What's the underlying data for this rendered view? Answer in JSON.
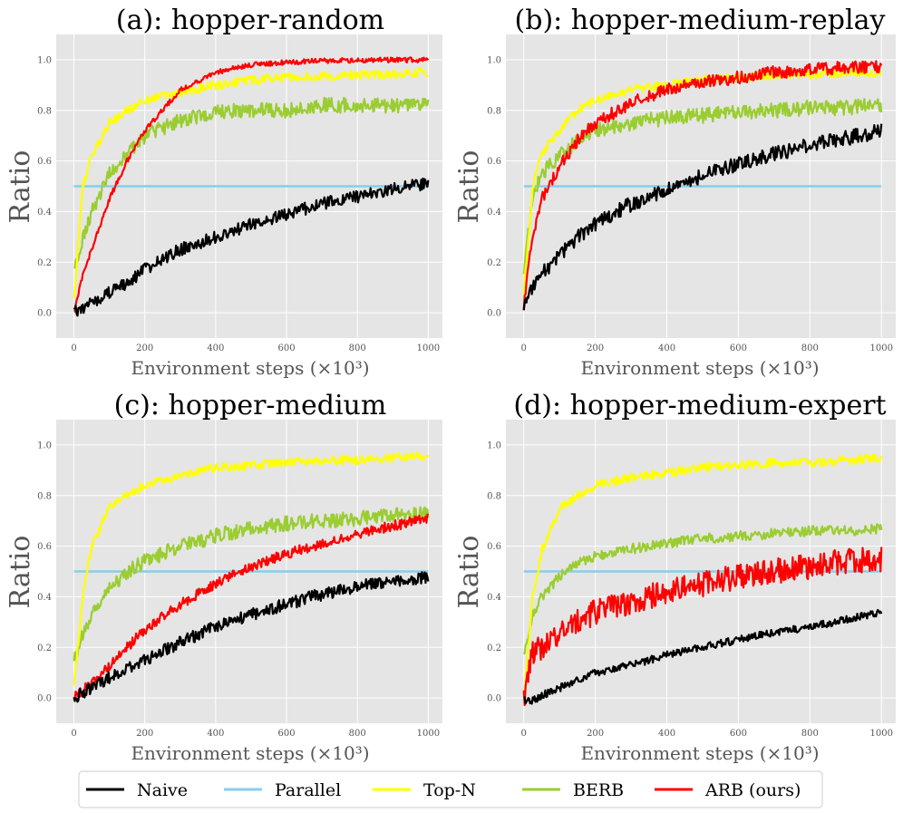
{
  "chart_data": {
    "type": "line",
    "legend": {
      "placement": "bottom-center",
      "entries": [
        {
          "name": "Naive",
          "color": "#000000"
        },
        {
          "name": "Parallel",
          "color": "#87ceeb"
        },
        {
          "name": "Top-N",
          "color": "#ffff00"
        },
        {
          "name": "BERB",
          "color": "#9acd32"
        },
        {
          "name": "ARB (ours)",
          "color": "#ff0000"
        }
      ]
    },
    "panels": [
      {
        "id": "a",
        "title": "(a): hopper-random",
        "xlabel": "Environment steps (×10³)",
        "ylabel": "Ratio",
        "xlim": [
          -50,
          1040
        ],
        "ylim": [
          -0.1,
          1.1
        ],
        "xticks": [
          "0",
          "200",
          "400",
          "600",
          "800",
          "1000"
        ],
        "yticks": [
          "0.0",
          "0.2",
          "0.4",
          "0.6",
          "0.8",
          "1.0"
        ],
        "grid": true,
        "x": [
          0,
          25,
          50,
          100,
          150,
          200,
          300,
          400,
          500,
          600,
          700,
          800,
          900,
          1000
        ],
        "series": [
          {
            "name": "Naive",
            "values": [
              0.0,
              0.02,
              0.04,
              0.08,
              0.12,
              0.17,
              0.25,
              0.3,
              0.35,
              0.39,
              0.43,
              0.46,
              0.49,
              0.51
            ],
            "noise": 0.025
          },
          {
            "name": "Parallel",
            "values": [
              0.5,
              0.5,
              0.5,
              0.5,
              0.5,
              0.5,
              0.5,
              0.5,
              0.5,
              0.5,
              0.5,
              0.5,
              0.5,
              0.5
            ],
            "noise": 0
          },
          {
            "name": "Top-N",
            "values": [
              0.05,
              0.5,
              0.62,
              0.75,
              0.8,
              0.84,
              0.87,
              0.9,
              0.92,
              0.93,
              0.93,
              0.94,
              0.94,
              0.95
            ],
            "noise": 0.018
          },
          {
            "name": "BERB",
            "values": [
              0.17,
              0.3,
              0.4,
              0.55,
              0.62,
              0.7,
              0.76,
              0.79,
              0.8,
              0.8,
              0.82,
              0.82,
              0.82,
              0.82
            ],
            "noise": 0.03
          },
          {
            "name": "ARB (ours)",
            "values": [
              0.0,
              0.15,
              0.25,
              0.45,
              0.6,
              0.72,
              0.88,
              0.95,
              0.98,
              0.99,
              0.995,
              0.998,
              0.999,
              0.999
            ],
            "noise": 0.01
          }
        ]
      },
      {
        "id": "b",
        "title": "(b): hopper-medium-replay",
        "xlabel": "Environment steps (×10³)",
        "ylabel": "Ratio",
        "xlim": [
          -50,
          1040
        ],
        "ylim": [
          -0.1,
          1.1
        ],
        "xticks": [
          "0",
          "200",
          "400",
          "600",
          "800",
          "1000"
        ],
        "yticks": [
          "0.0",
          "0.2",
          "0.4",
          "0.6",
          "0.8",
          "1.0"
        ],
        "grid": true,
        "x": [
          0,
          25,
          50,
          100,
          150,
          200,
          300,
          400,
          500,
          600,
          700,
          800,
          900,
          1000
        ],
        "series": [
          {
            "name": "Naive",
            "values": [
              0.03,
              0.1,
              0.15,
              0.23,
              0.3,
              0.35,
              0.43,
              0.49,
              0.54,
              0.59,
              0.63,
              0.66,
              0.69,
              0.72
            ],
            "noise": 0.03
          },
          {
            "name": "Parallel",
            "values": [
              0.5,
              0.5,
              0.5,
              0.5,
              0.5,
              0.5,
              0.5,
              0.5,
              0.5,
              0.5,
              0.5,
              0.5,
              0.5,
              0.5
            ],
            "noise": 0
          },
          {
            "name": "Top-N",
            "values": [
              0.08,
              0.5,
              0.63,
              0.72,
              0.8,
              0.84,
              0.88,
              0.9,
              0.92,
              0.93,
              0.94,
              0.94,
              0.95,
              0.95
            ],
            "noise": 0.018
          },
          {
            "name": "BERB",
            "values": [
              0.18,
              0.45,
              0.55,
              0.62,
              0.68,
              0.72,
              0.75,
              0.77,
              0.78,
              0.79,
              0.8,
              0.81,
              0.81,
              0.82
            ],
            "noise": 0.03
          },
          {
            "name": "ARB (ours)",
            "values": [
              0.03,
              0.3,
              0.45,
              0.58,
              0.68,
              0.75,
              0.83,
              0.88,
              0.91,
              0.93,
              0.95,
              0.96,
              0.97,
              0.97
            ],
            "noise": 0.025
          }
        ]
      },
      {
        "id": "c",
        "title": "(c): hopper-medium",
        "xlabel": "Environment steps (×10³)",
        "ylabel": "Ratio",
        "xlim": [
          -50,
          1040
        ],
        "ylim": [
          -0.1,
          1.1
        ],
        "xticks": [
          "0",
          "200",
          "400",
          "600",
          "800",
          "1000"
        ],
        "yticks": [
          "0.0",
          "0.2",
          "0.4",
          "0.6",
          "0.8",
          "1.0"
        ],
        "grid": true,
        "x": [
          0,
          25,
          50,
          100,
          150,
          200,
          300,
          400,
          500,
          600,
          700,
          800,
          900,
          1000
        ],
        "series": [
          {
            "name": "Naive",
            "values": [
              0.0,
              0.02,
              0.04,
              0.08,
              0.12,
              0.15,
              0.22,
              0.28,
              0.33,
              0.37,
              0.41,
              0.44,
              0.46,
              0.48
            ],
            "noise": 0.025
          },
          {
            "name": "Parallel",
            "values": [
              0.5,
              0.5,
              0.5,
              0.5,
              0.5,
              0.5,
              0.5,
              0.5,
              0.5,
              0.5,
              0.5,
              0.5,
              0.5,
              0.5
            ],
            "noise": 0
          },
          {
            "name": "Top-N",
            "values": [
              0.05,
              0.4,
              0.6,
              0.75,
              0.8,
              0.84,
              0.88,
              0.91,
              0.92,
              0.93,
              0.94,
              0.94,
              0.95,
              0.96
            ],
            "noise": 0.018
          },
          {
            "name": "BERB",
            "values": [
              0.15,
              0.25,
              0.33,
              0.43,
              0.5,
              0.54,
              0.6,
              0.64,
              0.67,
              0.69,
              0.7,
              0.71,
              0.72,
              0.73
            ],
            "noise": 0.03
          },
          {
            "name": "ARB (ours)",
            "values": [
              0.0,
              0.03,
              0.06,
              0.13,
              0.2,
              0.27,
              0.37,
              0.45,
              0.52,
              0.57,
              0.61,
              0.65,
              0.68,
              0.71
            ],
            "noise": 0.02
          }
        ]
      },
      {
        "id": "d",
        "title": "(d): hopper-medium-expert",
        "xlabel": "Environment steps (×10³)",
        "ylabel": "Ratio",
        "xlim": [
          -50,
          1040
        ],
        "ylim": [
          -0.1,
          1.1
        ],
        "xticks": [
          "0",
          "200",
          "400",
          "600",
          "800",
          "1000"
        ],
        "yticks": [
          "0.0",
          "0.2",
          "0.4",
          "0.6",
          "0.8",
          "1.0"
        ],
        "grid": true,
        "x": [
          0,
          25,
          50,
          100,
          150,
          200,
          300,
          400,
          500,
          600,
          700,
          800,
          900,
          1000
        ],
        "series": [
          {
            "name": "Naive",
            "values": [
              -0.01,
              -0.01,
              0.01,
              0.04,
              0.07,
              0.1,
              0.13,
              0.17,
              0.2,
              0.23,
              0.26,
              0.28,
              0.31,
              0.34
            ],
            "noise": 0.015
          },
          {
            "name": "Parallel",
            "values": [
              0.5,
              0.5,
              0.5,
              0.5,
              0.5,
              0.5,
              0.5,
              0.5,
              0.5,
              0.5,
              0.5,
              0.5,
              0.5,
              0.5
            ],
            "noise": 0
          },
          {
            "name": "Top-N",
            "values": [
              0.0,
              0.4,
              0.58,
              0.75,
              0.8,
              0.84,
              0.87,
              0.89,
              0.91,
              0.92,
              0.93,
              0.93,
              0.94,
              0.95
            ],
            "noise": 0.018
          },
          {
            "name": "BERB",
            "values": [
              0.16,
              0.33,
              0.4,
              0.48,
              0.53,
              0.56,
              0.59,
              0.61,
              0.63,
              0.64,
              0.65,
              0.66,
              0.66,
              0.67
            ],
            "noise": 0.02
          },
          {
            "name": "ARB (ours)",
            "values": [
              -0.01,
              0.18,
              0.2,
              0.25,
              0.3,
              0.34,
              0.38,
              0.42,
              0.45,
              0.48,
              0.5,
              0.52,
              0.54,
              0.55
            ],
            "noise": 0.05
          }
        ]
      }
    ]
  }
}
